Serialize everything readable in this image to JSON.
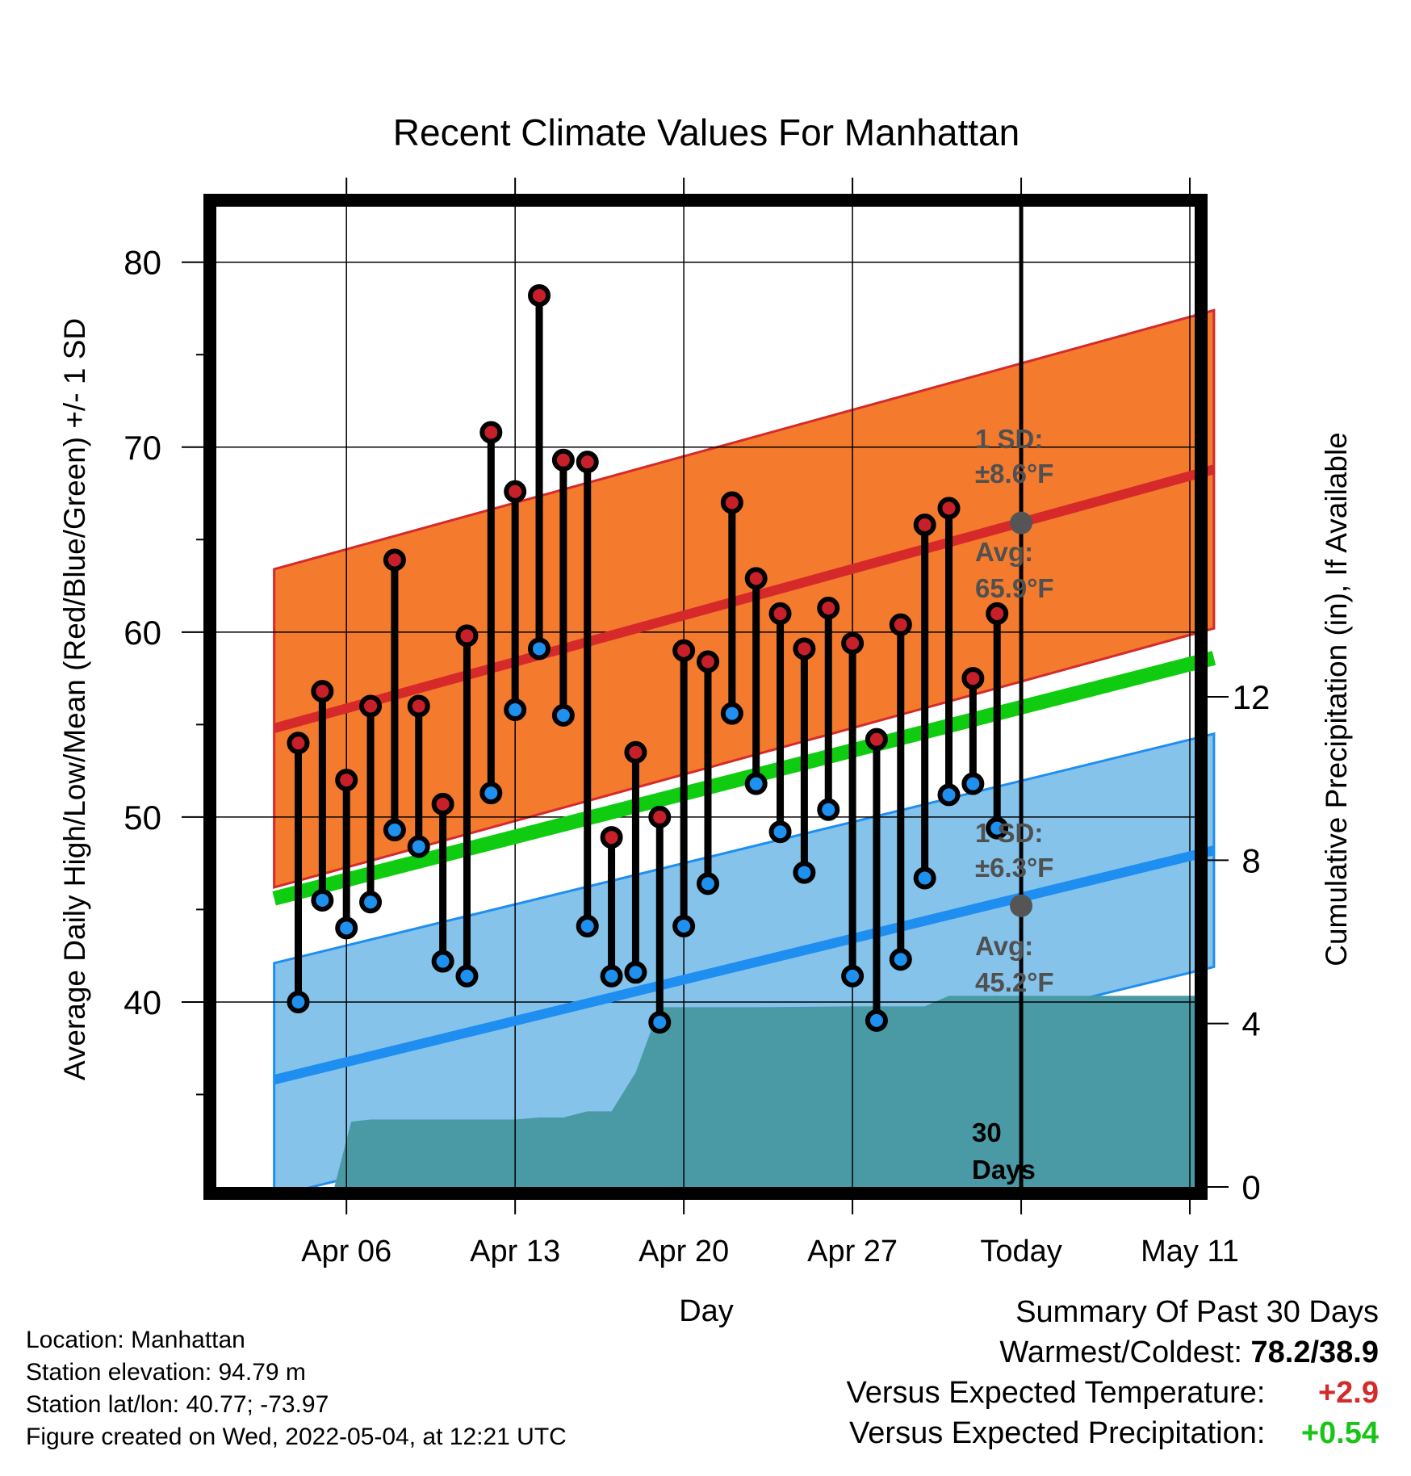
{
  "chart_data": {
    "type": "line",
    "title": "Recent Climate Values For Manhattan",
    "xlabel": "Day",
    "ylabel": "Average Daily High/Low/Mean (Red/Blue/Green) +/- 1 SD",
    "y2label": "Cumulative Precipitation (in), If Available",
    "ylim": [
      30,
      83
    ],
    "y2lim": [
      0,
      24
    ],
    "xlim": [
      -2.4,
      38.2
    ],
    "x_ticks": [
      {
        "day": 3,
        "label": "Apr 06"
      },
      {
        "day": 10,
        "label": "Apr 13"
      },
      {
        "day": 17,
        "label": "Apr 20"
      },
      {
        "day": 24,
        "label": "Apr 27"
      },
      {
        "day": 31,
        "label": "Today"
      },
      {
        "day": 38,
        "label": "May 11"
      }
    ],
    "y_ticks": [
      40,
      50,
      60,
      70,
      80
    ],
    "y2_ticks": [
      0,
      4,
      8,
      12
    ],
    "days": [
      1,
      2,
      3,
      4,
      5,
      6,
      7,
      8,
      9,
      10,
      11,
      12,
      13,
      14,
      15,
      16,
      17,
      18,
      19,
      20,
      21,
      22,
      23,
      24,
      25,
      26,
      27,
      28,
      29,
      30
    ],
    "highs": [
      54.0,
      56.8,
      52.0,
      56.0,
      63.9,
      56.0,
      50.7,
      59.8,
      70.8,
      67.6,
      78.2,
      69.3,
      69.2,
      48.9,
      53.5,
      50.0,
      59.0,
      58.4,
      67.0,
      62.9,
      61.0,
      59.1,
      61.3,
      59.4,
      54.2,
      60.4,
      65.8,
      66.7,
      57.5,
      61.0
    ],
    "lows": [
      40.0,
      45.5,
      44.0,
      45.4,
      49.3,
      48.4,
      42.2,
      41.4,
      51.3,
      55.8,
      59.1,
      55.5,
      44.1,
      41.4,
      41.6,
      38.9,
      44.1,
      46.4,
      55.6,
      51.8,
      49.2,
      47.0,
      50.4,
      41.4,
      39.0,
      42.3,
      46.7,
      51.2,
      51.8,
      49.4
    ],
    "normals": {
      "start_day": 0,
      "end_day": 39,
      "avg_high": [
        54.8,
        68.8
      ],
      "high_sd": 8.6,
      "avg_low": [
        35.8,
        48.2
      ],
      "low_sd": 6.3,
      "avg_mean": [
        45.6,
        58.6
      ],
      "today_day": 31,
      "today_avg_high": 65.9,
      "today_avg_low": 45.2
    },
    "precipitation": {
      "days": [
        0,
        2.5,
        3.2,
        4,
        7,
        10,
        11,
        12,
        13,
        14,
        15,
        16,
        17,
        20,
        24,
        25,
        27,
        28,
        31,
        38.2
      ],
      "cumulative": [
        0,
        0,
        1.6,
        1.65,
        1.65,
        1.65,
        1.7,
        1.7,
        1.85,
        1.85,
        2.8,
        4.4,
        4.4,
        4.4,
        4.42,
        4.42,
        4.42,
        4.68,
        4.68,
        4.68
      ]
    },
    "colors": {
      "high_band": "#f47a2e",
      "high_line": "#d62a2a",
      "high_point": "#c8202a",
      "low_band": "#85c3eb",
      "low_line": "#1e8ef0",
      "low_point": "#1e90f0",
      "mean_line": "#10cc10",
      "precip": "#4a9aa5",
      "sd_text": "#505050"
    }
  },
  "annotations": {
    "high_sd_title": "1 SD:",
    "high_sd_value": "±8.6°F",
    "high_avg_title": "Avg:",
    "high_avg_value": "65.9°F",
    "low_sd_title": "1 SD:",
    "low_sd_value": "±6.3°F",
    "low_avg_title": "Avg:",
    "low_avg_value": "45.2°F",
    "period_line1": "30",
    "period_line2": "Days"
  },
  "footer": {
    "location": "Location: Manhattan",
    "elevation": "Station elevation: 94.79 m",
    "latlon": "Station lat/lon: 40.77; -73.97",
    "created": "Figure created on Wed, 2022-05-04, at 12:21 UTC"
  },
  "summary": {
    "title": "Summary Of Past 30 Days",
    "warmest_label": "Warmest/Coldest:",
    "warmest_value": "78.2/38.9",
    "temp_label": "Versus Expected Temperature:",
    "temp_value": "+2.9",
    "precip_label": "Versus Expected Precipitation:",
    "precip_value": "+0.54"
  }
}
